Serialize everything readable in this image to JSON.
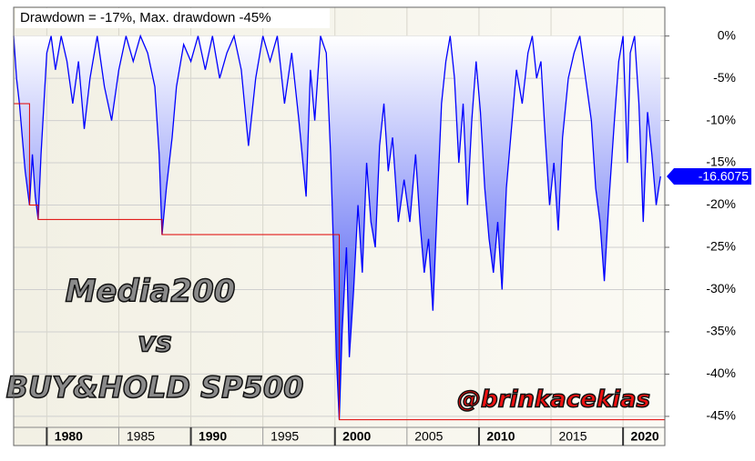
{
  "chart_data": {
    "type": "area",
    "title": "Drawdown = -17%, Max. drawdown -45%",
    "color": "#0000ff",
    "fill_colors": [
      "#ffffff",
      "#1a2cf0"
    ],
    "grid": true,
    "xlim": [
      1977.7,
      2022.9
    ],
    "ylim": [
      -46.3,
      3.4
    ],
    "xticks": [
      1980,
      1985,
      1990,
      1995,
      2000,
      2005,
      2010,
      2015,
      2020
    ],
    "yticks": [
      {
        "value": 0,
        "label": "0%"
      },
      {
        "value": -5,
        "label": "-5%"
      },
      {
        "value": -10,
        "label": "-10%"
      },
      {
        "value": -15,
        "label": "-15%"
      },
      {
        "value": -20,
        "label": "-20%"
      },
      {
        "value": -25,
        "label": "-25%"
      },
      {
        "value": -30,
        "label": "-30%"
      },
      {
        "value": -35,
        "label": "-35%"
      },
      {
        "value": -40,
        "label": "-40%"
      },
      {
        "value": -45,
        "label": "-45%"
      }
    ],
    "x": [
      1977.7,
      1977.9,
      1978.1,
      1978.3,
      1978.5,
      1978.8,
      1979.0,
      1979.2,
      1979.4,
      1979.6,
      1979.8,
      1980.0,
      1980.3,
      1980.6,
      1981.0,
      1981.4,
      1981.8,
      1982.2,
      1982.6,
      1983.0,
      1983.5,
      1984.0,
      1984.5,
      1985.0,
      1985.5,
      1986.0,
      1986.5,
      1987.0,
      1987.5,
      1987.8,
      1988.0,
      1988.3,
      1988.7,
      1989.0,
      1989.5,
      1990.0,
      1990.5,
      1991.0,
      1991.5,
      1992.0,
      1992.5,
      1993.0,
      1993.5,
      1994.0,
      1994.5,
      1995.0,
      1995.5,
      1996.0,
      1996.5,
      1997.0,
      1997.5,
      1998.0,
      1998.3,
      1998.6,
      1999.0,
      1999.4,
      1999.7,
      1999.9,
      2000.1,
      2000.3,
      2000.5,
      2000.8,
      2001.0,
      2001.3,
      2001.6,
      2001.9,
      2002.2,
      2002.5,
      2002.8,
      2003.1,
      2003.4,
      2003.7,
      2004.0,
      2004.4,
      2004.8,
      2005.2,
      2005.6,
      2005.9,
      2006.2,
      2006.5,
      2006.8,
      2007.1,
      2007.4,
      2007.7,
      2008.0,
      2008.3,
      2008.6,
      2008.9,
      2009.2,
      2009.5,
      2009.8,
      2010.1,
      2010.4,
      2010.7,
      2011.0,
      2011.3,
      2011.6,
      2011.9,
      2012.2,
      2012.6,
      2013.0,
      2013.4,
      2013.7,
      2014.0,
      2014.3,
      2014.6,
      2014.9,
      2015.2,
      2015.5,
      2015.8,
      2016.2,
      2016.6,
      2017.0,
      2017.4,
      2017.8,
      2018.1,
      2018.4,
      2018.7,
      2019.0,
      2019.4,
      2019.7,
      2020.0,
      2020.3,
      2020.5,
      2020.8,
      2021.1,
      2021.4,
      2021.7,
      2022.0,
      2022.3,
      2022.6
    ],
    "values": [
      0,
      -5,
      -8,
      -12,
      -16,
      -20,
      -14,
      -19,
      -21.7,
      -14,
      -8,
      -2,
      0,
      -4,
      0,
      -3,
      -8,
      -3,
      -11,
      -5,
      0,
      -6,
      -10,
      -4,
      0,
      -3,
      0,
      -2,
      -6,
      -14,
      -23.5,
      -18,
      -12,
      -6,
      -1,
      -3,
      0,
      -4,
      0,
      -5,
      -2,
      0,
      -4,
      -13,
      -5,
      0,
      -3,
      0,
      -8,
      -2,
      -10,
      -19,
      -4,
      -10,
      0,
      -2,
      -14,
      -25,
      -38,
      -45.4,
      -35,
      -25,
      -38,
      -30,
      -20,
      -28,
      -15,
      -22,
      -25,
      -13,
      -8,
      -16,
      -12,
      -22,
      -17,
      -22,
      -14,
      -22,
      -28,
      -24,
      -32.5,
      -20,
      -8,
      -3,
      0,
      -5,
      -15,
      -8,
      -20,
      -10,
      -3,
      -9,
      -18,
      -24,
      -28,
      -22,
      -30,
      -18,
      -12,
      -4,
      -8,
      -2,
      0,
      -5,
      -3,
      -12,
      -20,
      -15,
      -23,
      -12,
      -5,
      -2,
      0,
      -5,
      -10,
      -18,
      -22,
      -29,
      -20,
      -10,
      -3,
      0,
      -15,
      -2,
      0,
      -8,
      -22,
      -9,
      -14,
      -20,
      -16.6
    ],
    "max_drawdown_line": {
      "color": "#e00000",
      "x": [
        1977.7,
        1978.8,
        1978.8,
        1979.4,
        1979.4,
        1988.0,
        1988.0,
        2000.3,
        2000.3,
        2022.9
      ],
      "values": [
        -8,
        -8,
        -20,
        -20,
        -21.7,
        -21.7,
        -23.5,
        -23.5,
        -45.4,
        -45.4
      ]
    },
    "current_value": -16.6075,
    "annotations": [
      "Media200",
      "vs",
      "BUY&HOLD SP500",
      "@brinkacekias"
    ]
  }
}
